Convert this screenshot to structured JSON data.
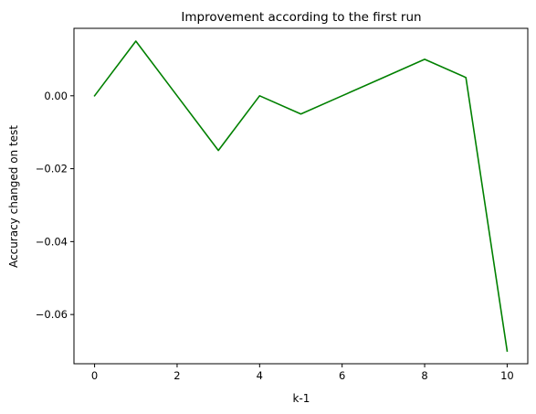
{
  "chart_data": {
    "type": "line",
    "title": "Improvement according to the first run",
    "xlabel": "k-1",
    "ylabel": "Accuracy changed on test",
    "x": [
      0,
      1,
      2,
      3,
      4,
      5,
      6,
      7,
      8,
      9,
      10
    ],
    "series": [
      {
        "values": [
          0.0,
          0.015,
          0.0,
          -0.015,
          0.0,
          -0.005,
          0.0,
          0.005,
          0.01,
          0.005,
          -0.07
        ],
        "color": "#008000"
      }
    ],
    "xlim": [
      -0.5,
      10.5
    ],
    "ylim": [
      -0.0735,
      0.0185
    ],
    "xticks": [
      0,
      2,
      4,
      6,
      8,
      10
    ],
    "xtick_labels": [
      "0",
      "2",
      "4",
      "6",
      "8",
      "10"
    ],
    "yticks": [
      0.0,
      -0.02,
      -0.04,
      -0.06
    ],
    "ytick_labels": [
      "0.00",
      "−0.02",
      "−0.04",
      "−0.06"
    ],
    "grid": false,
    "legend": "none"
  }
}
